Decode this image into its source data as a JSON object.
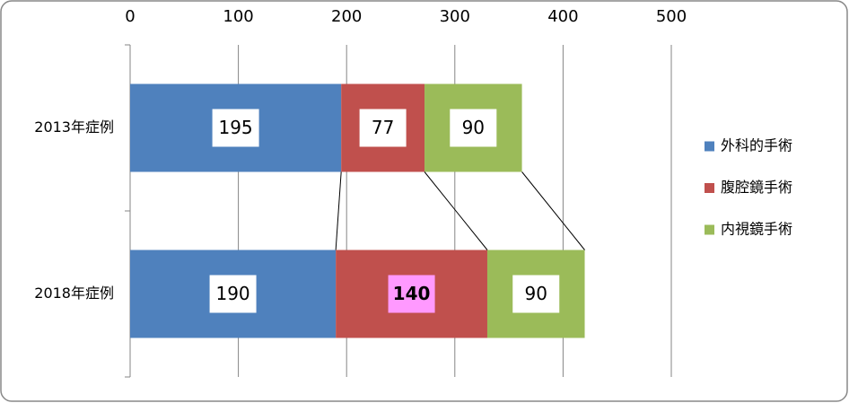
{
  "chart_data": {
    "type": "stacked-bar-horizontal",
    "categories": [
      "2013年症例",
      "2018年症例"
    ],
    "series": [
      {
        "name": "外科的手術",
        "color": "#4f81bd",
        "values": [
          195,
          190
        ]
      },
      {
        "name": "腹腔鏡手術",
        "color": "#c0504d",
        "values": [
          77,
          140
        ],
        "label_colors": [
          null,
          "#ff99ff"
        ]
      },
      {
        "name": "内視鏡手術",
        "color": "#9bbb59",
        "values": [
          90,
          90
        ]
      }
    ],
    "xlim": [
      0,
      500
    ],
    "xticks": [
      0,
      100,
      200,
      300,
      400,
      500
    ],
    "grid": true,
    "legend": "right",
    "series_lines": true
  }
}
